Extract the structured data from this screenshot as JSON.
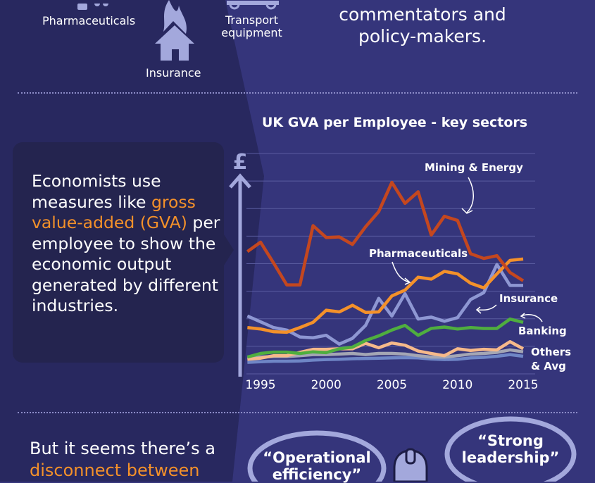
{
  "top": {
    "icons": [
      {
        "label": "Pharmaceuticals",
        "icon": "pill-bottle-icon"
      },
      {
        "label": "Insurance",
        "icon": "burning-house-icon"
      },
      {
        "label": "Transport equipment",
        "icon": "truck-icon"
      }
    ],
    "statement_lines": [
      "commentators and",
      "policy-makers."
    ]
  },
  "middle": {
    "text_before": "Economists use measures like ",
    "text_highlight": "gross value-added (GVA)",
    "text_after": " per employee to show the economic output generated by different industries."
  },
  "chart_data": {
    "type": "line",
    "title": "UK GVA per Employee - key sectors",
    "ylabel": "£",
    "xlabel": "",
    "x": [
      1994,
      1995,
      1996,
      1997,
      1998,
      1999,
      2000,
      2001,
      2002,
      2003,
      2004,
      2005,
      2006,
      2007,
      2008,
      2009,
      2010,
      2011,
      2012,
      2013,
      2014,
      2015
    ],
    "x_ticks": [
      "1995",
      "2000",
      "2005",
      "2010",
      "2015"
    ],
    "ylim": [
      0,
      8
    ],
    "grid": true,
    "series": [
      {
        "name": "Mining & Energy",
        "color": "#c4471f",
        "values": [
          4.44,
          4.78,
          4.02,
          3.23,
          3.23,
          5.38,
          4.95,
          4.97,
          4.7,
          5.34,
          5.89,
          6.95,
          6.19,
          6.61,
          5.04,
          5.72,
          5.57,
          4.36,
          4.19,
          4.29,
          3.68,
          3.38
        ]
      },
      {
        "name": "Pharmaceuticals",
        "color": "#f4912a",
        "values": [
          1.68,
          1.63,
          1.53,
          1.51,
          1.68,
          1.87,
          2.31,
          2.25,
          2.49,
          2.23,
          2.25,
          2.83,
          3.04,
          3.51,
          3.44,
          3.72,
          3.63,
          3.29,
          3.12,
          3.63,
          4.12,
          4.17
        ]
      },
      {
        "name": "Insurance",
        "color": "#8e97d3",
        "values": [
          2.1,
          1.89,
          1.68,
          1.59,
          1.34,
          1.31,
          1.4,
          1.08,
          1.29,
          1.76,
          2.74,
          2.1,
          2.91,
          1.99,
          2.06,
          1.91,
          2.04,
          2.7,
          2.95,
          3.97,
          3.21,
          3.21
        ]
      },
      {
        "name": "Banking",
        "color": "#4fae3f",
        "values": [
          0.61,
          0.74,
          0.79,
          0.79,
          0.74,
          0.8,
          0.77,
          0.91,
          0.97,
          1.21,
          1.38,
          1.59,
          1.76,
          1.4,
          1.65,
          1.7,
          1.63,
          1.68,
          1.65,
          1.65,
          1.99,
          1.87
        ]
      },
      {
        "name": "Others & Avg",
        "color": "#f6b98a",
        "values": [
          0.53,
          0.57,
          0.66,
          0.66,
          0.78,
          0.89,
          0.89,
          0.91,
          0.91,
          1.11,
          0.95,
          1.12,
          1.04,
          0.83,
          0.74,
          0.66,
          0.91,
          0.85,
          0.89,
          0.87,
          1.17,
          0.91
        ]
      },
      {
        "color": "#a4a6b4",
        "values": [
          0.57,
          0.61,
          0.63,
          0.63,
          0.66,
          0.7,
          0.7,
          0.72,
          0.74,
          0.7,
          0.74,
          0.74,
          0.72,
          0.66,
          0.61,
          0.61,
          0.66,
          0.72,
          0.74,
          0.78,
          0.87,
          0.8
        ]
      },
      {
        "color": "#6f86c6",
        "values": [
          0.42,
          0.44,
          0.46,
          0.46,
          0.47,
          0.5,
          0.52,
          0.53,
          0.55,
          0.56,
          0.57,
          0.58,
          0.59,
          0.58,
          0.54,
          0.52,
          0.53,
          0.58,
          0.6,
          0.64,
          0.7,
          0.64
        ]
      }
    ],
    "annotations": [
      "Mining & Energy",
      "Pharmaceuticals",
      "Insurance",
      "Banking",
      "Others",
      "& Avg"
    ]
  },
  "bottom": {
    "line1": "But it seems there’s a",
    "line2": "disconnect between",
    "bubbles": [
      {
        "lines": [
          "“Operational",
          "efficiency”"
        ]
      },
      {
        "lines": [
          "“Strong",
          "leadership”"
        ]
      }
    ]
  }
}
